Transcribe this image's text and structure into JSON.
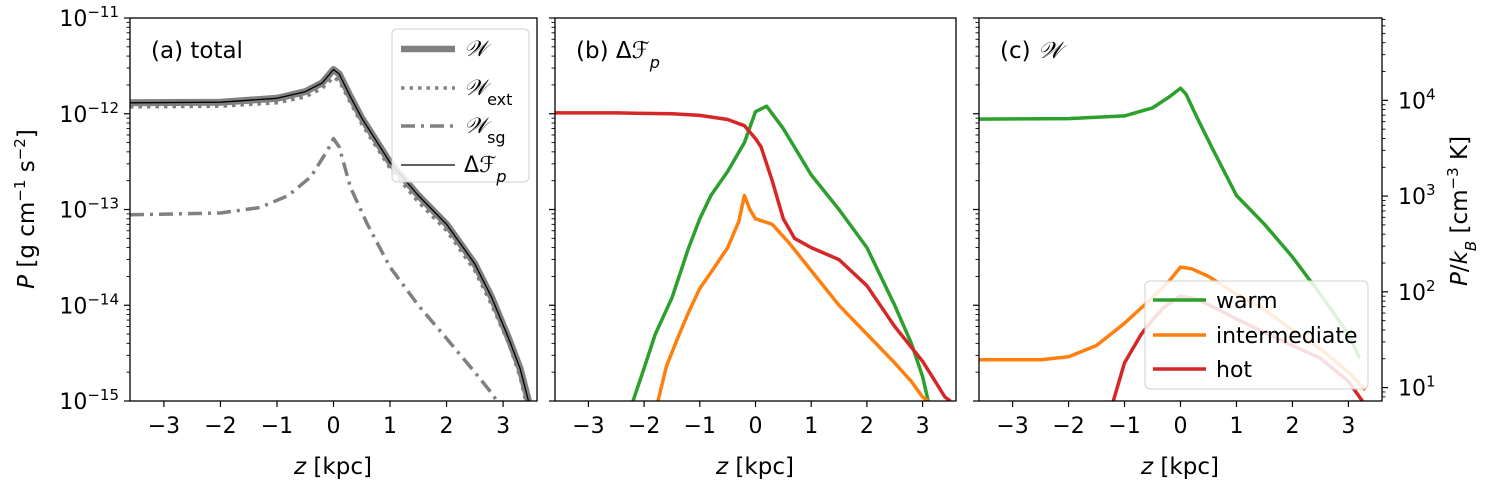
{
  "chart_data": [
    {
      "type": "line",
      "panel_label": "(a) total",
      "xlabel": "z [kpc]",
      "ylabel": "P [g cm^-1 s^-2]",
      "xlim": [
        -3.6,
        3.6
      ],
      "ylim": [
        1e-15,
        1e-11
      ],
      "yscale": "log",
      "x_ticks": [
        -3,
        -2,
        -1,
        0,
        1,
        2,
        3
      ],
      "x_tick_labels": [
        "−3",
        "−2",
        "−1",
        "0",
        "1",
        "2",
        "3"
      ],
      "y_ticks": [
        1e-15,
        1e-14,
        1e-13,
        1e-12,
        1e-11
      ],
      "y_tick_labels": [
        {
          "base": "10",
          "exp": "−15"
        },
        {
          "base": "10",
          "exp": "−14"
        },
        {
          "base": "10",
          "exp": "−13"
        },
        {
          "base": "10",
          "exp": "−12"
        },
        {
          "base": "10",
          "exp": "−11"
        }
      ],
      "legend_position": "top-right",
      "series": [
        {
          "name": "𝒲",
          "color": "#808080",
          "style": "thick",
          "x": [
            -3.6,
            -2,
            -1,
            -0.5,
            -0.2,
            0,
            0.1,
            0.3,
            0.5,
            1,
            1.5,
            2,
            2.5,
            2.8,
            3.1,
            3.3,
            3.45
          ],
          "y": [
            1.3e-12,
            1.32e-12,
            1.45e-12,
            1.7e-12,
            2.1e-12,
            2.9e-12,
            2.6e-12,
            1.5e-12,
            9e-13,
            3.1e-13,
            1.4e-13,
            7e-14,
            2.7e-14,
            1.2e-14,
            4.5e-15,
            2.2e-15,
            1e-15
          ]
        },
        {
          "name": "𝒲ext",
          "color": "#808080",
          "style": "dotted",
          "x": [
            -3.6,
            -2,
            -1,
            -0.5,
            -0.2,
            0,
            0.1,
            0.3,
            0.5,
            1,
            1.5,
            2,
            2.5,
            2.8,
            3.1,
            3.3,
            3.4
          ],
          "y": [
            1.18e-12,
            1.2e-12,
            1.3e-12,
            1.5e-12,
            1.85e-12,
            2.4e-12,
            2.2e-12,
            1.3e-12,
            7.8e-13,
            2.7e-13,
            1.2e-13,
            6e-14,
            2.3e-14,
            1e-14,
            4e-15,
            1.8e-15,
            1e-15
          ]
        },
        {
          "name": "𝒲sg",
          "color": "#808080",
          "style": "dashdot",
          "x": [
            -3.6,
            -2,
            -1.3,
            -0.8,
            -0.4,
            -0.1,
            0,
            0.1,
            0.3,
            0.6,
            1,
            1.5,
            2,
            2.5,
            2.8,
            3.0
          ],
          "y": [
            8.8e-14,
            9.2e-14,
            1.05e-13,
            1.4e-13,
            2.2e-13,
            4.2e-13,
            5.5e-13,
            4.5e-13,
            1.7e-13,
            7e-14,
            2.5e-14,
            1e-14,
            4.5e-15,
            2e-15,
            1.2e-15,
            8e-16
          ]
        },
        {
          "name": "Δℱp",
          "color": "#000000",
          "style": "thin",
          "x": [
            -3.6,
            -2,
            -1,
            -0.5,
            -0.2,
            0,
            0.1,
            0.3,
            0.5,
            1,
            1.5,
            2,
            2.5,
            2.8,
            3.1,
            3.3,
            3.45
          ],
          "y": [
            1.3e-12,
            1.32e-12,
            1.45e-12,
            1.7e-12,
            2.1e-12,
            2.9e-12,
            2.6e-12,
            1.5e-12,
            9e-13,
            3.1e-13,
            1.4e-13,
            7e-14,
            2.7e-14,
            1.2e-14,
            4.5e-15,
            2.2e-15,
            1e-15
          ]
        }
      ]
    },
    {
      "type": "line",
      "panel_label": "(b) Δℱp",
      "xlabel": "z [kpc]",
      "xlim": [
        -3.6,
        3.6
      ],
      "ylim": [
        1e-15,
        1e-11
      ],
      "yscale": "log",
      "x_ticks": [
        -3,
        -2,
        -1,
        0,
        1,
        2,
        3
      ],
      "x_tick_labels": [
        "−3",
        "−2",
        "−1",
        "0",
        "1",
        "2",
        "3"
      ],
      "series": [
        {
          "name": "warm",
          "color": "#2ca02c",
          "x": [
            -2.2,
            -2.0,
            -1.8,
            -1.5,
            -1.2,
            -1.0,
            -0.8,
            -0.5,
            -0.2,
            0,
            0.2,
            0.5,
            1.0,
            1.5,
            2.0,
            2.5,
            2.8,
            3.0,
            3.1
          ],
          "y": [
            1e-15,
            2.2e-15,
            5e-15,
            1.2e-14,
            4e-14,
            8e-14,
            1.4e-13,
            2.5e-13,
            5e-13,
            1.05e-12,
            1.2e-12,
            7e-13,
            2.3e-13,
            1e-13,
            4e-14,
            1e-14,
            4e-15,
            1.8e-15,
            1e-15
          ]
        },
        {
          "name": "intermediate",
          "color": "#ff7f0e",
          "x": [
            -1.75,
            -1.6,
            -1.4,
            -1.2,
            -1.0,
            -0.8,
            -0.5,
            -0.3,
            -0.2,
            -0.1,
            0,
            0.3,
            0.6,
            1.0,
            1.5,
            2.0,
            2.5,
            2.8,
            3.0,
            3.1
          ],
          "y": [
            1e-15,
            2.3e-15,
            4.5e-15,
            8.5e-15,
            1.5e-14,
            2.2e-14,
            4e-14,
            7.5e-14,
            1.4e-13,
            1e-13,
            8e-14,
            7e-14,
            4.5e-14,
            2.3e-14,
            1e-14,
            5e-15,
            2.5e-15,
            1.6e-15,
            1.1e-15,
            1e-15
          ]
        },
        {
          "name": "hot",
          "color": "#d62728",
          "x": [
            -3.6,
            -2.5,
            -1.5,
            -1.0,
            -0.5,
            -0.2,
            0,
            0.1,
            0.3,
            0.5,
            0.7,
            1.0,
            1.5,
            2.0,
            2.5,
            3.0,
            3.2,
            3.4,
            3.5
          ],
          "y": [
            1.02e-12,
            1.02e-12,
            1e-12,
            9.6e-13,
            8.7e-13,
            7.5e-13,
            5.5e-13,
            4.5e-13,
            2e-13,
            8e-14,
            5e-14,
            4e-14,
            3e-14,
            1.6e-14,
            6e-15,
            2.6e-15,
            1.7e-15,
            1.1e-15,
            1e-15
          ]
        }
      ]
    },
    {
      "type": "line",
      "panel_label": "(c) 𝒲",
      "xlabel": "z [kpc]",
      "ylabel_right": "P/k_B [cm^-3 K]",
      "xlim": [
        -3.6,
        3.6
      ],
      "ylim": [
        1e-15,
        1e-11
      ],
      "yscale": "log",
      "x_ticks": [
        -3,
        -2,
        -1,
        0,
        1,
        2,
        3
      ],
      "x_tick_labels": [
        "−3",
        "−2",
        "−1",
        "0",
        "1",
        "2",
        "3"
      ],
      "right_ticks": [
        10,
        100,
        1000,
        10000
      ],
      "right_tick_labels": [
        {
          "base": "10",
          "exp": "1"
        },
        {
          "base": "10",
          "exp": "2"
        },
        {
          "base": "10",
          "exp": "3"
        },
        {
          "base": "10",
          "exp": "4"
        }
      ],
      "legend_position": "lower-right",
      "series": [
        {
          "name": "warm",
          "color": "#2ca02c",
          "x": [
            -3.6,
            -2,
            -1,
            -0.5,
            -0.2,
            0,
            0.1,
            0.3,
            0.6,
            1.0,
            1.5,
            2.0,
            2.5,
            3.0,
            3.2
          ],
          "y": [
            8.8e-13,
            8.9e-13,
            9.5e-13,
            1.15e-12,
            1.5e-12,
            1.85e-12,
            1.6e-12,
            9e-13,
            4e-13,
            1.4e-13,
            7e-14,
            3.2e-14,
            1.3e-14,
            5e-15,
            2.8e-15
          ]
        },
        {
          "name": "intermediate",
          "color": "#ff7f0e",
          "x": [
            -3.6,
            -2.5,
            -2.0,
            -1.5,
            -1.0,
            -0.5,
            -0.2,
            0,
            0.2,
            0.5,
            1.0,
            1.5,
            2.0,
            2.5,
            3.0,
            3.3
          ],
          "y": [
            2.7e-15,
            2.7e-15,
            2.9e-15,
            3.8e-15,
            6.5e-15,
            1.2e-14,
            1.8e-14,
            2.5e-14,
            2.4e-14,
            2e-14,
            1.3e-14,
            9e-15,
            5.5e-15,
            3.5e-15,
            2e-15,
            1.3e-15
          ]
        },
        {
          "name": "hot",
          "color": "#d62728",
          "x": [
            -1.2,
            -1.0,
            -0.7,
            -0.5,
            -0.3,
            0,
            0.3,
            0.6,
            1.0,
            1.5,
            2.0,
            2.5,
            3.0,
            3.25
          ],
          "y": [
            1e-15,
            2.5e-15,
            5e-15,
            7e-15,
            9.5e-15,
            1.25e-14,
            1.15e-14,
            9.5e-15,
            7.2e-15,
            5.2e-15,
            3.8e-15,
            2.8e-15,
            1.6e-15,
            1e-15
          ]
        }
      ]
    }
  ]
}
